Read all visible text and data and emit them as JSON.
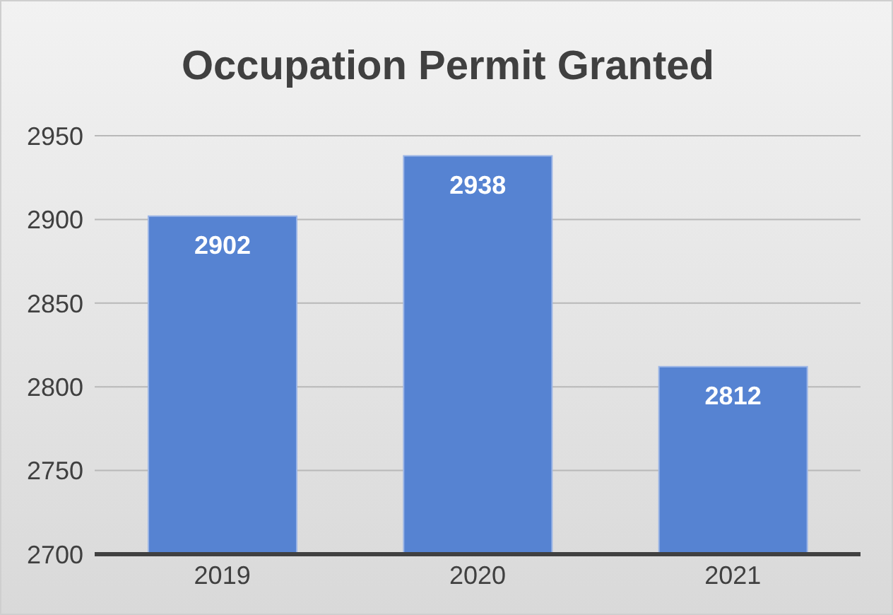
{
  "chart_data": {
    "type": "bar",
    "title": "Occupation Permit Granted",
    "categories": [
      "2019",
      "2020",
      "2021"
    ],
    "values": [
      2902,
      2938,
      2812
    ],
    "color": "#5683d2",
    "ylim": [
      2700,
      2950
    ],
    "yticks": [
      2700,
      2750,
      2800,
      2850,
      2900,
      2950
    ],
    "grid": "y",
    "data_labels": true
  }
}
